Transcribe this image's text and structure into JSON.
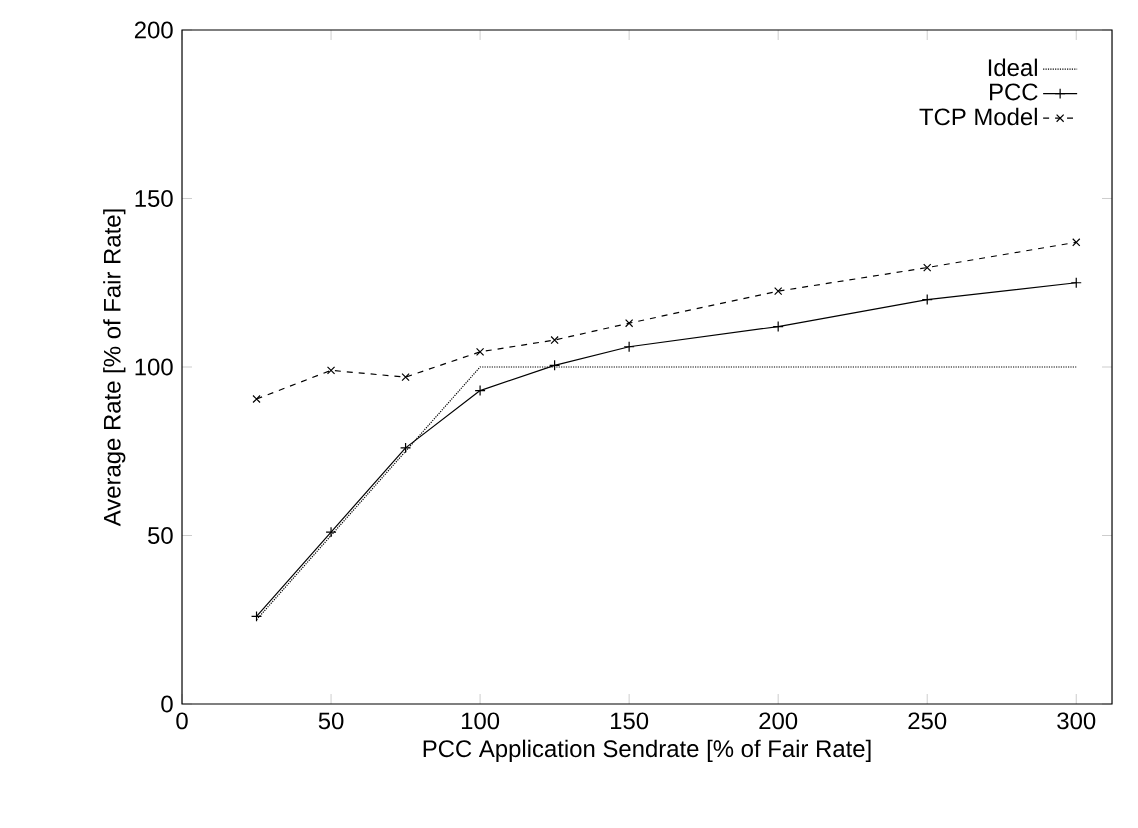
{
  "chart_data": {
    "type": "line",
    "xlabel": "PCC Application Sendrate [% of Fair Rate]",
    "ylabel": "Average Rate [% of Fair Rate]",
    "x": [
      25,
      50,
      75,
      100,
      125,
      150,
      200,
      250,
      300
    ],
    "series": [
      {
        "name": "Ideal",
        "color": "#000000",
        "line_style": "dotted",
        "marker": "none",
        "values": [
          25,
          50,
          75,
          100,
          100,
          100,
          100,
          100,
          100
        ]
      },
      {
        "name": "PCC",
        "color": "#000000",
        "line_style": "solid",
        "marker": "plus",
        "values": [
          26,
          51,
          76,
          93,
          100.5,
          106,
          112,
          120,
          125
        ]
      },
      {
        "name": "TCP Model",
        "color": "#000000",
        "line_style": "dashed",
        "marker": "cross",
        "values": [
          90.5,
          99,
          97,
          104.5,
          108,
          113,
          122.5,
          129.5,
          137
        ]
      }
    ],
    "xlim": [
      0,
      312
    ],
    "xticks": [
      0,
      50,
      100,
      150,
      200,
      250,
      300
    ],
    "ylim": [
      0,
      200
    ],
    "yticks": [
      0,
      50,
      100,
      150,
      200
    ],
    "grid": false,
    "legend": "top right"
  }
}
